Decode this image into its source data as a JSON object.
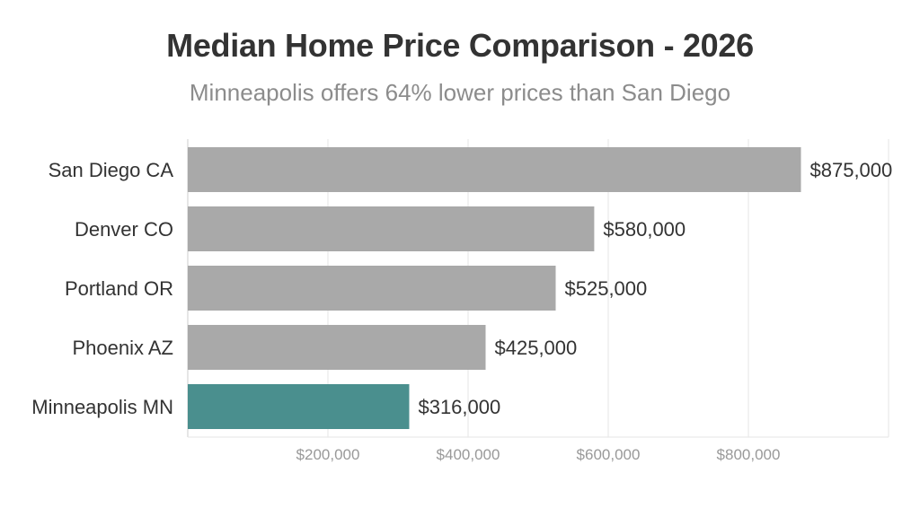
{
  "chart_data": {
    "type": "bar",
    "orientation": "horizontal",
    "title": "Median Home Price Comparison - 2026",
    "subtitle": "Minneapolis offers 64% lower prices than San Diego",
    "categories": [
      "San Diego CA",
      "Denver CO",
      "Portland OR",
      "Phoenix AZ",
      "Minneapolis MN"
    ],
    "values": [
      875000,
      580000,
      525000,
      425000,
      316000
    ],
    "value_labels": [
      "$875,000",
      "$580,000",
      "$525,000",
      "$425,000",
      "$316,000"
    ],
    "highlight_index": 4,
    "xlim": [
      0,
      1000000
    ],
    "xticks": [
      200000,
      400000,
      600000,
      800000
    ],
    "xtick_labels": [
      "$200,000",
      "$400,000",
      "$600,000",
      "$800,000"
    ],
    "xlabel": "",
    "ylabel": "",
    "grid": true,
    "colors": {
      "default": "#a9a9a9",
      "highlight": "#4a8f8e",
      "grid": "#e6e6e6",
      "axis": "#cccccc"
    }
  }
}
